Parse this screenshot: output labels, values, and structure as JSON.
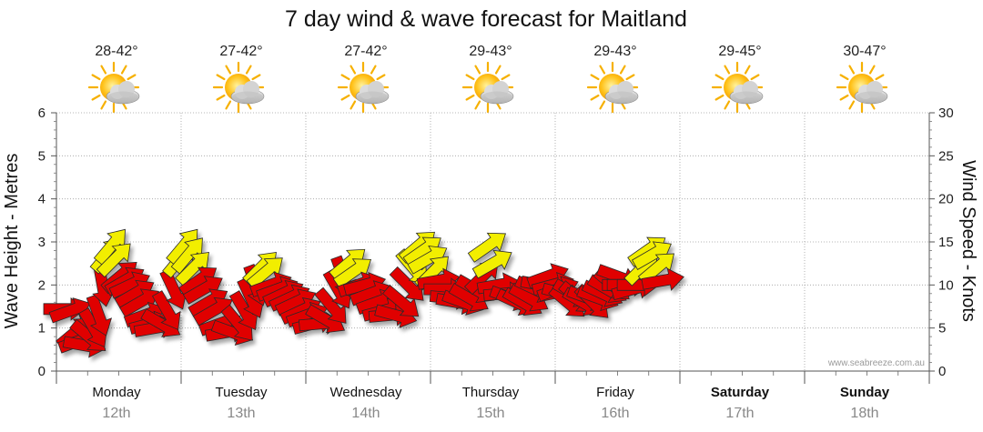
{
  "chart_data": {
    "type": "wind-wave-forecast",
    "title": "7 day wind & wave forecast for Maitland",
    "ylabel_left": "Wave Height - Metres",
    "ylabel_right": "Wind Speed - Knots",
    "y_left_range": [
      0,
      6
    ],
    "y_left_ticks": [
      "0",
      "1",
      "2",
      "3",
      "4",
      "5",
      "6"
    ],
    "y_right_range": [
      0,
      30
    ],
    "y_right_ticks": [
      "0",
      "5",
      "10",
      "15",
      "20",
      "25",
      "30"
    ],
    "watermark": "www.seabreeze.com.au",
    "days": [
      {
        "name": "Monday",
        "date": "12th",
        "temp": "28-42°",
        "icon": "sun-cloud-icon",
        "weekend": false
      },
      {
        "name": "Tuesday",
        "date": "13th",
        "temp": "27-42°",
        "icon": "sun-cloud-icon",
        "weekend": false
      },
      {
        "name": "Wednesday",
        "date": "14th",
        "temp": "27-42°",
        "icon": "sun-cloud-icon",
        "weekend": false
      },
      {
        "name": "Thursday",
        "date": "15th",
        "temp": "29-43°",
        "icon": "sun-cloud-icon",
        "weekend": false
      },
      {
        "name": "Friday",
        "date": "16th",
        "temp": "29-43°",
        "icon": "sun-cloud-icon",
        "weekend": false
      },
      {
        "name": "Saturday",
        "date": "17th",
        "temp": "29-45°",
        "icon": "sun-cloud-icon",
        "weekend": true
      },
      {
        "name": "Sunday",
        "date": "18th",
        "temp": "30-47°",
        "icon": "sun-cloud-icon",
        "weekend": true
      }
    ],
    "wind_series": {
      "name": "Wind",
      "units": "knots",
      "color_calm": "#e00000",
      "color_strong": "#f2ee00",
      "strong_threshold_knots": 11.5,
      "points": [
        {
          "t": 0.0,
          "speed": 7.2,
          "dir": 0
        },
        {
          "t": 0.05,
          "speed": 7.0,
          "dir": -20
        },
        {
          "t": 0.09,
          "speed": 4.5,
          "dir": -40
        },
        {
          "t": 0.12,
          "speed": 3.5,
          "dir": -20
        },
        {
          "t": 0.16,
          "speed": 3.0,
          "dir": 10
        },
        {
          "t": 0.2,
          "speed": 4.0,
          "dir": 40
        },
        {
          "t": 0.24,
          "speed": 5.0,
          "dir": 60
        },
        {
          "t": 0.28,
          "speed": 6.5,
          "dir": 70
        },
        {
          "t": 0.31,
          "speed": 10.0,
          "dir": 80
        },
        {
          "t": 0.35,
          "speed": 13.5,
          "dir": -50
        },
        {
          "t": 0.38,
          "speed": 14.5,
          "dir": -50
        },
        {
          "t": 0.41,
          "speed": 13.0,
          "dir": -45
        },
        {
          "t": 0.45,
          "speed": 11.0,
          "dir": -40
        },
        {
          "t": 0.49,
          "speed": 10.5,
          "dir": -30
        },
        {
          "t": 0.53,
          "speed": 10.0,
          "dir": -25
        },
        {
          "t": 0.57,
          "speed": 9.0,
          "dir": -30
        },
        {
          "t": 0.61,
          "speed": 8.0,
          "dir": -30
        },
        {
          "t": 0.65,
          "speed": 6.5,
          "dir": -20
        },
        {
          "t": 0.69,
          "speed": 5.5,
          "dir": -15
        },
        {
          "t": 0.73,
          "speed": 5.0,
          "dir": -10
        },
        {
          "t": 0.78,
          "speed": 5.5,
          "dir": 30
        },
        {
          "t": 0.83,
          "speed": 7.0,
          "dir": 60
        },
        {
          "t": 0.88,
          "speed": 9.5,
          "dir": 65
        },
        {
          "t": 0.93,
          "speed": 13.0,
          "dir": -50
        },
        {
          "t": 0.96,
          "speed": 14.5,
          "dir": -50
        },
        {
          "t": 1.0,
          "speed": 13.5,
          "dir": -50
        },
        {
          "t": 1.04,
          "speed": 12.0,
          "dir": -45
        },
        {
          "t": 1.08,
          "speed": 10.5,
          "dir": -35
        },
        {
          "t": 1.12,
          "speed": 9.5,
          "dir": -30
        },
        {
          "t": 1.16,
          "speed": 8.0,
          "dir": -30
        },
        {
          "t": 1.2,
          "speed": 7.0,
          "dir": -30
        },
        {
          "t": 1.25,
          "speed": 5.5,
          "dir": -20
        },
        {
          "t": 1.3,
          "speed": 4.5,
          "dir": -10
        },
        {
          "t": 1.35,
          "speed": 4.5,
          "dir": 20
        },
        {
          "t": 1.4,
          "speed": 5.5,
          "dir": 50
        },
        {
          "t": 1.45,
          "speed": 7.0,
          "dir": 60
        },
        {
          "t": 1.5,
          "speed": 8.5,
          "dir": 65
        },
        {
          "t": 1.54,
          "speed": 10.0,
          "dir": 70
        },
        {
          "t": 1.58,
          "speed": 12.0,
          "dir": -45
        },
        {
          "t": 1.62,
          "speed": 11.5,
          "dir": -40
        },
        {
          "t": 1.66,
          "speed": 10.0,
          "dir": -20
        },
        {
          "t": 1.71,
          "speed": 9.5,
          "dir": -20
        },
        {
          "t": 1.76,
          "speed": 9.0,
          "dir": -25
        },
        {
          "t": 1.81,
          "speed": 8.5,
          "dir": -25
        },
        {
          "t": 1.86,
          "speed": 8.0,
          "dir": -25
        },
        {
          "t": 1.9,
          "speed": 7.0,
          "dir": -25
        },
        {
          "t": 1.95,
          "speed": 6.5,
          "dir": -20
        },
        {
          "t": 2.0,
          "speed": 5.5,
          "dir": -15
        },
        {
          "t": 2.05,
          "speed": 5.5,
          "dir": -5
        },
        {
          "t": 2.1,
          "speed": 6.0,
          "dir": 30
        },
        {
          "t": 2.15,
          "speed": 7.5,
          "dir": 50
        },
        {
          "t": 2.2,
          "speed": 9.5,
          "dir": 60
        },
        {
          "t": 2.24,
          "speed": 11.0,
          "dir": 70
        },
        {
          "t": 2.28,
          "speed": 12.5,
          "dir": -40
        },
        {
          "t": 2.32,
          "speed": 11.5,
          "dir": -35
        },
        {
          "t": 2.36,
          "speed": 10.0,
          "dir": -20
        },
        {
          "t": 2.41,
          "speed": 10.0,
          "dir": -15
        },
        {
          "t": 2.46,
          "speed": 9.0,
          "dir": -20
        },
        {
          "t": 2.51,
          "speed": 8.0,
          "dir": -20
        },
        {
          "t": 2.56,
          "speed": 7.0,
          "dir": -15
        },
        {
          "t": 2.61,
          "speed": 6.5,
          "dir": -5
        },
        {
          "t": 2.66,
          "speed": 6.5,
          "dir": 15
        },
        {
          "t": 2.71,
          "speed": 8.0,
          "dir": 40
        },
        {
          "t": 2.76,
          "speed": 10.0,
          "dir": 45
        },
        {
          "t": 2.8,
          "speed": 12.0,
          "dir": 50
        },
        {
          "t": 2.84,
          "speed": 14.5,
          "dir": -40
        },
        {
          "t": 2.88,
          "speed": 14.0,
          "dir": -35
        },
        {
          "t": 2.92,
          "speed": 13.0,
          "dir": -30
        },
        {
          "t": 2.96,
          "speed": 11.5,
          "dir": -45
        },
        {
          "t": 3.0,
          "speed": 10.5,
          "dir": -10
        },
        {
          "t": 3.05,
          "speed": 9.5,
          "dir": 0
        },
        {
          "t": 3.1,
          "speed": 8.5,
          "dir": 5
        },
        {
          "t": 3.15,
          "speed": 8.0,
          "dir": 10
        },
        {
          "t": 3.2,
          "speed": 8.0,
          "dir": 20
        },
        {
          "t": 3.25,
          "speed": 8.5,
          "dir": 30
        },
        {
          "t": 3.3,
          "speed": 9.5,
          "dir": 30
        },
        {
          "t": 3.36,
          "speed": 11.0,
          "dir": -45
        },
        {
          "t": 3.4,
          "speed": 14.5,
          "dir": -35
        },
        {
          "t": 3.44,
          "speed": 12.5,
          "dir": -30
        },
        {
          "t": 3.48,
          "speed": 10.0,
          "dir": -10
        },
        {
          "t": 3.53,
          "speed": 9.0,
          "dir": -5
        },
        {
          "t": 3.58,
          "speed": 8.5,
          "dir": 20
        },
        {
          "t": 3.63,
          "speed": 8.0,
          "dir": 25
        },
        {
          "t": 3.68,
          "speed": 8.0,
          "dir": 30
        },
        {
          "t": 3.73,
          "speed": 8.5,
          "dir": 30
        },
        {
          "t": 3.78,
          "speed": 9.5,
          "dir": 25
        },
        {
          "t": 3.83,
          "speed": 10.0,
          "dir": 10
        },
        {
          "t": 3.88,
          "speed": 11.0,
          "dir": -20
        },
        {
          "t": 3.92,
          "speed": 10.0,
          "dir": -15
        },
        {
          "t": 3.96,
          "speed": 9.5,
          "dir": -20
        },
        {
          "t": 4.0,
          "speed": 9.0,
          "dir": 15
        },
        {
          "t": 4.04,
          "speed": 8.0,
          "dir": 40
        },
        {
          "t": 4.08,
          "speed": 9.0,
          "dir": 30
        },
        {
          "t": 4.12,
          "speed": 8.5,
          "dir": 40
        },
        {
          "t": 4.16,
          "speed": 8.0,
          "dir": 30
        },
        {
          "t": 4.2,
          "speed": 8.5,
          "dir": 20
        },
        {
          "t": 4.24,
          "speed": 8.0,
          "dir": 45
        },
        {
          "t": 4.28,
          "speed": 8.5,
          "dir": 20
        },
        {
          "t": 4.32,
          "speed": 9.0,
          "dir": 25
        },
        {
          "t": 4.36,
          "speed": 9.5,
          "dir": 30
        },
        {
          "t": 4.4,
          "speed": 10.0,
          "dir": 40
        },
        {
          "t": 4.44,
          "speed": 11.0,
          "dir": 20
        },
        {
          "t": 4.48,
          "speed": 10.0,
          "dir": 0
        },
        {
          "t": 4.52,
          "speed": 10.0,
          "dir": 0
        },
        {
          "t": 4.56,
          "speed": 9.5,
          "dir": -15
        },
        {
          "t": 4.6,
          "speed": 10.0,
          "dir": 0
        },
        {
          "t": 4.64,
          "speed": 12.0,
          "dir": -45
        },
        {
          "t": 4.68,
          "speed": 14.0,
          "dir": -35
        },
        {
          "t": 4.72,
          "speed": 13.5,
          "dir": -30
        },
        {
          "t": 4.76,
          "speed": 12.0,
          "dir": -40
        },
        {
          "t": 4.8,
          "speed": 10.5,
          "dir": -10
        }
      ]
    }
  }
}
